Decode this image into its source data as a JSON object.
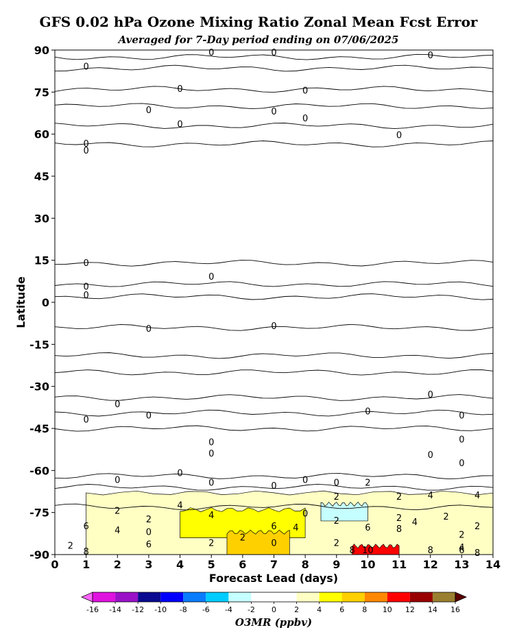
{
  "chart_data": {
    "type": "contour",
    "title": "GFS 0.02 hPa Ozone Mixing Ratio Zonal Mean Fcst Error",
    "subtitle": "Averaged for 7-Day period ending on 07/06/2025",
    "xlabel": "Forecast Lead (days)",
    "ylabel": "Latitude",
    "xlim": [
      0,
      14
    ],
    "ylim": [
      -90,
      90
    ],
    "x_ticks": [
      "0",
      "1",
      "2",
      "3",
      "4",
      "5",
      "6",
      "7",
      "8",
      "9",
      "10",
      "11",
      "12",
      "13",
      "14"
    ],
    "y_ticks": [
      "90",
      "75",
      "60",
      "45",
      "30",
      "15",
      "0",
      "-15",
      "-30",
      "-45",
      "-60",
      "-75",
      "-90"
    ],
    "colorbar": {
      "label": "O3MR (ppbv)",
      "ticks": [
        "-16",
        "-14",
        "-12",
        "-10",
        "-8",
        "-6",
        "-4",
        "-2",
        "0",
        "2",
        "4",
        "6",
        "8",
        "10",
        "12",
        "14",
        "16"
      ],
      "colors": [
        "#e012e0",
        "#9a12c8",
        "#0a0a90",
        "#0000ff",
        "#0a7cff",
        "#00ccff",
        "#c6ffff",
        "#ffffff",
        "#ffffff",
        "#ffffc4",
        "#ffff00",
        "#ffd000",
        "#ff8800",
        "#ff0000",
        "#990000",
        "#9a7f30"
      ],
      "under_color": "#ff66ff",
      "over_color": "#5a0000"
    },
    "contour_lines": [
      {
        "level": 0,
        "lat": 87.5
      },
      {
        "level": 0,
        "lat": 83.5
      },
      {
        "level": 0,
        "lat": 76
      },
      {
        "level": 0,
        "lat": 70
      },
      {
        "level": 0,
        "lat": 63
      },
      {
        "level": 0,
        "lat": 56.5
      },
      {
        "level": 0,
        "lat": 14
      },
      {
        "level": 0,
        "lat": 6.5
      },
      {
        "level": 0,
        "lat": 2
      },
      {
        "level": 0,
        "lat": -9
      },
      {
        "level": 0,
        "lat": -19
      },
      {
        "level": 0,
        "lat": -25
      },
      {
        "level": 0,
        "lat": -34
      },
      {
        "level": 0,
        "lat": -39.5
      },
      {
        "level": 0,
        "lat": -45
      },
      {
        "level": 0,
        "lat": -62
      },
      {
        "level": 0,
        "lat": -66
      },
      {
        "level": 2,
        "lat": -73
      }
    ],
    "regions": [
      {
        "level_range": [
          2,
          4
        ],
        "lat_range": [
          -90,
          -68
        ],
        "x_range": [
          1,
          14
        ]
      },
      {
        "level_range": [
          4,
          6
        ],
        "lat_range": [
          -84,
          -74
        ],
        "x_range": [
          4,
          8
        ]
      },
      {
        "level_range": [
          6,
          8
        ],
        "lat_range": [
          -90,
          -82
        ],
        "x_range": [
          5.5,
          7.5
        ]
      },
      {
        "level_range": [
          10,
          12
        ],
        "lat_range": [
          -90,
          -87
        ],
        "x_range": [
          9.5,
          11
        ]
      },
      {
        "level_range": [
          -4,
          -2
        ],
        "lat_range": [
          -78,
          -72
        ],
        "x_range": [
          8.5,
          10
        ]
      }
    ],
    "contour_labels": [
      {
        "text": "0",
        "x": 1.0,
        "y": 84
      },
      {
        "text": "0",
        "x": 5.0,
        "y": 89
      },
      {
        "text": "0",
        "x": 7.0,
        "y": 89
      },
      {
        "text": "0",
        "x": 12.0,
        "y": 88
      },
      {
        "text": "0",
        "x": 4.0,
        "y": 76
      },
      {
        "text": "0",
        "x": 8.0,
        "y": 75.5
      },
      {
        "text": "0",
        "x": 3.0,
        "y": 68.5
      },
      {
        "text": "0",
        "x": 7.0,
        "y": 68
      },
      {
        "text": "0",
        "x": 8.0,
        "y": 65.5
      },
      {
        "text": "0",
        "x": 4.0,
        "y": 63.5
      },
      {
        "text": "0",
        "x": 11.0,
        "y": 59.5
      },
      {
        "text": "0",
        "x": 1.0,
        "y": 56.5
      },
      {
        "text": "0",
        "x": 1.0,
        "y": 54
      },
      {
        "text": "0",
        "x": 1.0,
        "y": 14
      },
      {
        "text": "0",
        "x": 5.0,
        "y": 9
      },
      {
        "text": "0",
        "x": 1.0,
        "y": 5.5
      },
      {
        "text": "0",
        "x": 1.0,
        "y": 2.5
      },
      {
        "text": "0",
        "x": 3.0,
        "y": -9.5
      },
      {
        "text": "0",
        "x": 7.0,
        "y": -8.5
      },
      {
        "text": "0",
        "x": 2.0,
        "y": -36.5
      },
      {
        "text": "0",
        "x": 12.0,
        "y": -33
      },
      {
        "text": "0",
        "x": 3.0,
        "y": -40.5
      },
      {
        "text": "0",
        "x": 10.0,
        "y": -39
      },
      {
        "text": "0",
        "x": 13.0,
        "y": -40.5
      },
      {
        "text": "0",
        "x": 1.0,
        "y": -42
      },
      {
        "text": "0",
        "x": 5.0,
        "y": -50
      },
      {
        "text": "0",
        "x": 13.0,
        "y": -49
      },
      {
        "text": "0",
        "x": 5.0,
        "y": -54
      },
      {
        "text": "0",
        "x": 12.0,
        "y": -54.5
      },
      {
        "text": "0",
        "x": 13.0,
        "y": -57.5
      },
      {
        "text": "0",
        "x": 4.0,
        "y": -61
      },
      {
        "text": "0",
        "x": 2.0,
        "y": -63.5
      },
      {
        "text": "0",
        "x": 5.0,
        "y": -64.5
      },
      {
        "text": "0",
        "x": 7.0,
        "y": -65.5
      },
      {
        "text": "0",
        "x": 8.0,
        "y": -63.5
      },
      {
        "text": "0",
        "x": 9.0,
        "y": -64.5
      },
      {
        "text": "2",
        "x": 10.0,
        "y": -64.5
      },
      {
        "text": "2",
        "x": 9.0,
        "y": -69.5
      },
      {
        "text": "2",
        "x": 11.0,
        "y": -69.5
      },
      {
        "text": "4",
        "x": 12.0,
        "y": -69
      },
      {
        "text": "4",
        "x": 13.5,
        "y": -69
      },
      {
        "text": "4",
        "x": 4.0,
        "y": -72.5
      },
      {
        "text": "2",
        "x": 2.0,
        "y": -74.5
      },
      {
        "text": "4",
        "x": 5.0,
        "y": -76
      },
      {
        "text": "2",
        "x": 3.0,
        "y": -77.5
      },
      {
        "text": "0",
        "x": 8.0,
        "y": -75.5
      },
      {
        "text": "2",
        "x": 9.0,
        "y": -78
      },
      {
        "text": "2",
        "x": 11.0,
        "y": -77
      },
      {
        "text": "2",
        "x": 12.5,
        "y": -76.5
      },
      {
        "text": "6",
        "x": 1.0,
        "y": -80
      },
      {
        "text": "4",
        "x": 2.0,
        "y": -81.5
      },
      {
        "text": "0",
        "x": 3.0,
        "y": -82
      },
      {
        "text": "6",
        "x": 7.0,
        "y": -80
      },
      {
        "text": "4",
        "x": 7.7,
        "y": -80.5
      },
      {
        "text": "6",
        "x": 10.0,
        "y": -80.5
      },
      {
        "text": "8",
        "x": 11.0,
        "y": -81
      },
      {
        "text": "4",
        "x": 11.5,
        "y": -78.5
      },
      {
        "text": "2",
        "x": 13.0,
        "y": -83
      },
      {
        "text": "2",
        "x": 13.5,
        "y": -80
      },
      {
        "text": "2",
        "x": 6.0,
        "y": -84
      },
      {
        "text": "2",
        "x": 5.0,
        "y": -86
      },
      {
        "text": "6",
        "x": 3.0,
        "y": -86.5
      },
      {
        "text": "0",
        "x": 7.0,
        "y": -86
      },
      {
        "text": "2",
        "x": 9.0,
        "y": -86
      },
      {
        "text": "8",
        "x": 1.0,
        "y": -89
      },
      {
        "text": "2",
        "x": 0.5,
        "y": -87
      },
      {
        "text": "10",
        "x": 10.0,
        "y": -88.5
      },
      {
        "text": "8",
        "x": 9.5,
        "y": -88.5
      },
      {
        "text": "8",
        "x": 12.0,
        "y": -88.5
      },
      {
        "text": "6",
        "x": 13.0,
        "y": -88.5
      },
      {
        "text": "4",
        "x": 13.0,
        "y": -87.5
      },
      {
        "text": "8",
        "x": 13.5,
        "y": -89.5
      }
    ]
  }
}
